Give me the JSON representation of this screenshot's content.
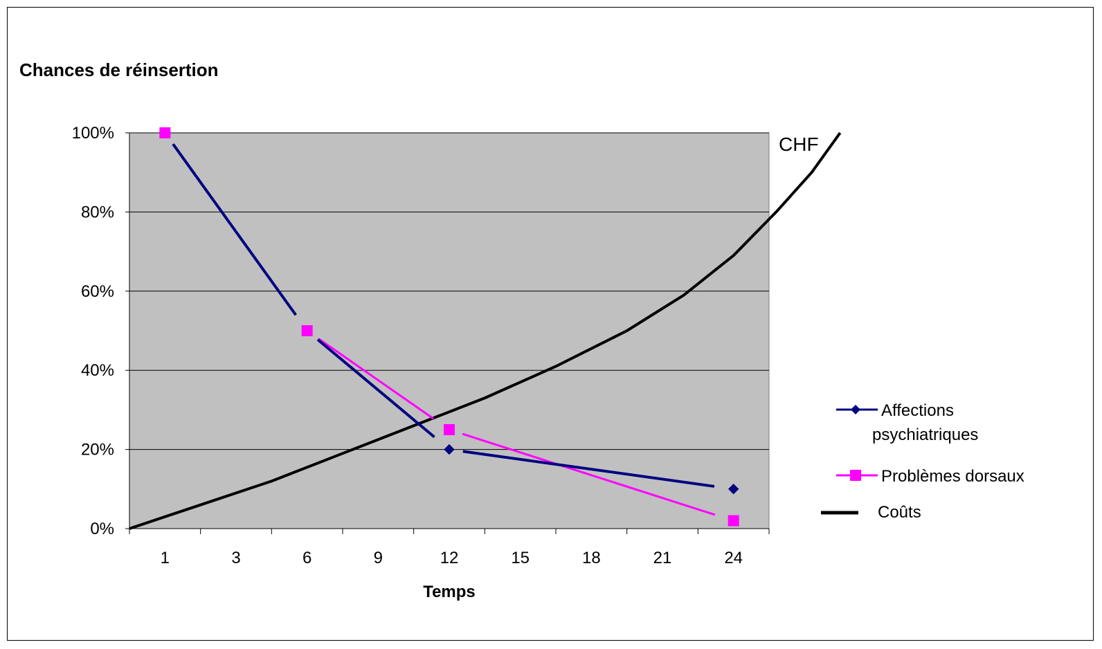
{
  "chart_data": {
    "type": "line",
    "title": "Chances de réinsertion",
    "xlabel": "Temps",
    "ylabel": "",
    "secondary_axis_label": "CHF",
    "categories": [
      "1",
      "3",
      "6",
      "9",
      "12",
      "15",
      "18",
      "21",
      "24"
    ],
    "y_ticks": [
      "0%",
      "20%",
      "40%",
      "60%",
      "80%",
      "100%"
    ],
    "ylim": [
      0,
      100
    ],
    "grid": true,
    "legend_position": "right",
    "colors": {
      "plot_background": "#c0c0c0",
      "affections": "#000080",
      "problemes": "#ff00ff",
      "couts": "#000000"
    },
    "series": [
      {
        "name": "Affections psychiatriques",
        "marker": "diamond",
        "points": [
          {
            "category": "1",
            "value": 100
          },
          {
            "category": "6",
            "value": 50
          },
          {
            "category": "12",
            "value": 20
          },
          {
            "category": "24",
            "value": 10
          }
        ]
      },
      {
        "name": "Problèmes dorsaux",
        "marker": "square",
        "points": [
          {
            "category": "1",
            "value": 100
          },
          {
            "category": "6",
            "value": 50
          },
          {
            "category": "12",
            "value": 25
          },
          {
            "category": "24",
            "value": 2
          }
        ]
      },
      {
        "name": "Coûts",
        "marker": "none",
        "points": [
          {
            "x": 0,
            "value": 0
          },
          {
            "x": 1,
            "value": 6
          },
          {
            "x": 2,
            "value": 12
          },
          {
            "x": 3,
            "value": 19
          },
          {
            "x": 4,
            "value": 26
          },
          {
            "x": 5,
            "value": 33
          },
          {
            "x": 6,
            "value": 41
          },
          {
            "x": 7,
            "value": 50
          },
          {
            "x": 7.8,
            "value": 59
          },
          {
            "x": 8.5,
            "value": 69
          },
          {
            "x": 9.1,
            "value": 80
          },
          {
            "x": 9.6,
            "value": 90
          },
          {
            "x": 10.0,
            "value": 100
          }
        ]
      }
    ]
  }
}
